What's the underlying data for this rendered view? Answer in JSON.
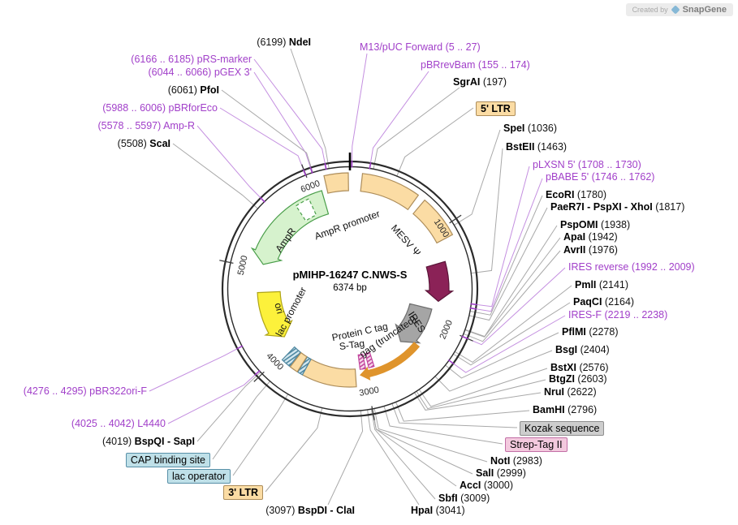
{
  "badge": {
    "created_by": "Created by",
    "brand": "SnapGene"
  },
  "plasmid": {
    "name": "pMIHP-16247 C.NWS-S",
    "size": "6374 bp",
    "length_bp": 6374
  },
  "scale_ticks": [
    1000,
    2000,
    3000,
    4000,
    5000,
    6000
  ],
  "colors": {
    "primer": "#A13FC9",
    "enzyme": "#000000",
    "line_gray": "#A9A9A9",
    "line_purple": "#C48FE0",
    "ring": "#2B2B2B",
    "tan_fill": "#FBDCA4",
    "tan_stroke": "#AD8D5A",
    "green_fill": "#D6F2CD",
    "green_stroke": "#4A9E4A",
    "yellow_fill": "#FCF13B",
    "yellow_stroke": "#AFA416",
    "maroon_fill": "#8B2257",
    "maroon_stroke": "#5A1538",
    "gray_fill": "#A5A5A5",
    "gray_stroke": "#6E6E6E",
    "orange": "#DF942C",
    "pink_fill": "#F6D8EA",
    "pink_stroke": "#C2479E",
    "teal_fill": "#D4E8F0",
    "teal_stroke": "#4E87A0"
  },
  "site_labels": [
    {
      "id": "m13_puc_forward",
      "kind": "primer",
      "name": "M13/pUC Forward",
      "post": "(5 .. 27)",
      "bp": 16
    },
    {
      "id": "pbrrevbam",
      "kind": "primer",
      "name": "pBRrevBam",
      "post": "(155 .. 174)",
      "bp": 165
    },
    {
      "id": "sgrai",
      "kind": "enzyme",
      "name": "SgrAI",
      "post": "(197)",
      "bp": 197
    },
    {
      "id": "five_ltr",
      "kind": "feature",
      "name": "5' LTR",
      "box": "tan",
      "bp": 400
    },
    {
      "id": "spei",
      "kind": "enzyme",
      "name": "SpeI",
      "post": "(1036)",
      "bp": 1036
    },
    {
      "id": "bsteii",
      "kind": "enzyme",
      "name": "BstEII",
      "post": "(1463)",
      "bp": 1463
    },
    {
      "id": "plxsn5",
      "kind": "primer",
      "name": "pLXSN 5'",
      "post": "(1708 .. 1730)",
      "bp": 1719
    },
    {
      "id": "pbabe5",
      "kind": "primer",
      "name": "pBABE 5'",
      "post": "(1746 .. 1762)",
      "bp": 1754
    },
    {
      "id": "ecori",
      "kind": "enzyme",
      "name": "EcoRI",
      "post": "(1780)",
      "bp": 1780
    },
    {
      "id": "paer7i_pspxi_xhoi",
      "kind": "enzyme",
      "name": "PaeR7I - PspXI - XhoI",
      "post": "(1817)",
      "bp": 1817
    },
    {
      "id": "pspomi",
      "kind": "enzyme",
      "name": "PspOMI",
      "post": "(1938)",
      "bp": 1938
    },
    {
      "id": "apai",
      "kind": "enzyme",
      "name": "ApaI",
      "post": "(1942)",
      "bp": 1942
    },
    {
      "id": "avrii",
      "kind": "enzyme",
      "name": "AvrII",
      "post": "(1976)",
      "bp": 1976
    },
    {
      "id": "ires_reverse",
      "kind": "primer",
      "name": "IRES reverse",
      "post": "(1992 .. 2009)",
      "bp": 2000
    },
    {
      "id": "pmli",
      "kind": "enzyme",
      "name": "PmlI",
      "post": "(2141)",
      "bp": 2141
    },
    {
      "id": "paqci",
      "kind": "enzyme",
      "name": "PaqCI",
      "post": "(2164)",
      "bp": 2164
    },
    {
      "id": "ires_f",
      "kind": "primer",
      "name": "IRES-F",
      "post": "(2219 .. 2238)",
      "bp": 2228
    },
    {
      "id": "pflmi",
      "kind": "enzyme",
      "name": "PflMI",
      "post": "(2278)",
      "bp": 2278
    },
    {
      "id": "bsgi",
      "kind": "enzyme",
      "name": "BsgI",
      "post": "(2404)",
      "bp": 2404
    },
    {
      "id": "bstxi",
      "kind": "enzyme",
      "name": "BstXI",
      "post": "(2576)",
      "bp": 2576
    },
    {
      "id": "btgzi",
      "kind": "enzyme",
      "name": "BtgZI",
      "post": "(2603)",
      "bp": 2603
    },
    {
      "id": "nrui",
      "kind": "enzyme",
      "name": "NruI",
      "post": "(2622)",
      "bp": 2622
    },
    {
      "id": "bamhi",
      "kind": "enzyme",
      "name": "BamHI",
      "post": "(2796)",
      "bp": 2796
    },
    {
      "id": "kozak",
      "kind": "feature",
      "name": "Kozak sequence",
      "box": "gray",
      "bp": 2830
    },
    {
      "id": "strep_tag_ii",
      "kind": "feature",
      "name": "Strep-Tag II",
      "box": "pink",
      "bp": 2900
    },
    {
      "id": "noti",
      "kind": "enzyme",
      "name": "NotI",
      "post": "(2983)",
      "bp": 2983
    },
    {
      "id": "sali",
      "kind": "enzyme",
      "name": "SalI",
      "post": "(2999)",
      "bp": 2999
    },
    {
      "id": "acci",
      "kind": "enzyme",
      "name": "AccI",
      "post": "(3000)",
      "bp": 3000
    },
    {
      "id": "sbfi",
      "kind": "enzyme",
      "name": "SbfI",
      "post": "(3009)",
      "bp": 3009
    },
    {
      "id": "hpai",
      "kind": "enzyme",
      "name": "HpaI",
      "post": "(3041)",
      "bp": 3041
    },
    {
      "id": "bspdi_clai",
      "kind": "enzyme",
      "pre": "(3097)",
      "name": "BspDI - ClaI",
      "bp": 3097
    },
    {
      "id": "three_ltr",
      "kind": "feature",
      "name": "3' LTR",
      "box": "tan",
      "bp": 3420
    },
    {
      "id": "lac_operator",
      "kind": "feature",
      "name": "lac operator",
      "box": "teal",
      "bp": 3727
    },
    {
      "id": "cap_binding_site",
      "kind": "feature",
      "name": "CAP binding site",
      "box": "teal",
      "bp": 3910
    },
    {
      "id": "bspqi_sapi",
      "kind": "enzyme",
      "pre": "(4019)",
      "name": "BspQI - SapI",
      "bp": 4019
    },
    {
      "id": "l4440",
      "kind": "primer",
      "pre": "(4025 .. 4042)",
      "name": "L4440",
      "bp": 4033
    },
    {
      "id": "pbr322ori_f",
      "kind": "primer",
      "pre": "(4276 .. 4295)",
      "name": "pBR322ori-F",
      "bp": 4285
    },
    {
      "id": "scai",
      "kind": "enzyme",
      "pre": "(5508)",
      "name": "ScaI",
      "bp": 5508
    },
    {
      "id": "amp_r",
      "kind": "primer",
      "pre": "(5578 .. 5597)",
      "name": "Amp-R",
      "bp": 5587
    },
    {
      "id": "pbrforeco",
      "kind": "primer",
      "pre": "(5988 .. 6006)",
      "name": "pBRforEco",
      "bp": 5997
    },
    {
      "id": "pgex3",
      "kind": "primer",
      "pre": "(6044 .. 6066)",
      "name": "pGEX 3'",
      "bp": 6055
    },
    {
      "id": "pfoi",
      "kind": "enzyme",
      "pre": "(6061)",
      "name": "PfoI",
      "bp": 6061
    },
    {
      "id": "prs_marker",
      "kind": "primer",
      "pre": "(6166 .. 6185)",
      "name": "pRS-marker",
      "bp": 6175
    },
    {
      "id": "ndei",
      "kind": "enzyme",
      "pre": "(6199)",
      "name": "NdeI",
      "bp": 6199
    }
  ],
  "features": [
    {
      "id": "ltr5_arc",
      "name": "5' LTR",
      "shape": "arc",
      "color": "tan",
      "bp": [
        110,
        640
      ]
    },
    {
      "id": "psi_arc",
      "name": "MESV Ψ",
      "shape": "arc",
      "color": "tan",
      "bp": [
        710,
        1100
      ],
      "label": "MESV Ψ"
    },
    {
      "id": "env_arrow",
      "name": "",
      "shape": "arrow",
      "color": "maroon",
      "bp": [
        1310,
        1735
      ],
      "dir": 1
    },
    {
      "id": "ires_arrow",
      "name": "IRES",
      "shape": "arrow",
      "color": "gray",
      "bp": [
        1840,
        2410
      ],
      "dir": 1,
      "label": "IRES"
    },
    {
      "id": "gag_arrow",
      "name": "gag (truncated)",
      "shape": "thin_arrow",
      "color": "orange",
      "bp": [
        2300,
        3063
      ],
      "dir": 1,
      "label": "gag (truncated)"
    },
    {
      "id": "protein_c_tag",
      "name": "Protein C tag",
      "shape": "hatch",
      "color": "pink",
      "bp": [
        2880,
        2950
      ],
      "label": "Protein C tag"
    },
    {
      "id": "s_tag",
      "name": "S-Tag",
      "shape": "hatch",
      "color": "pink",
      "bp": [
        2990,
        3060
      ],
      "label": "S-Tag"
    },
    {
      "id": "ltr3_arc",
      "name": "3' LTR",
      "shape": "arc",
      "color": "tan",
      "bp": [
        3120,
        3700
      ]
    },
    {
      "id": "lac_operator_mark",
      "name": "lac operator",
      "shape": "hatch",
      "color": "teal",
      "bp": [
        3700,
        3755
      ]
    },
    {
      "id": "lac_promoter_arc",
      "name": "lac promoter",
      "shape": "arc",
      "color": "tan",
      "bp": [
        3760,
        3850
      ],
      "label": "lac promoter"
    },
    {
      "id": "cap_mark",
      "name": "CAP binding site",
      "shape": "hatch",
      "color": "teal",
      "bp": [
        3860,
        3960
      ]
    },
    {
      "id": "ori_arrow",
      "name": "ori",
      "shape": "arrow",
      "color": "yellow",
      "bp": [
        4140,
        4740
      ],
      "dir": -1,
      "label": "ori"
    },
    {
      "id": "ampr_arrow",
      "name": "AmpR",
      "shape": "arrow",
      "color": "green",
      "bp": [
        5060,
        6090
      ],
      "dir": -1,
      "label": "AmpR"
    },
    {
      "id": "ampr_gap",
      "name": "",
      "shape": "dashed",
      "color": "green",
      "bp": [
        5790,
        5940
      ]
    },
    {
      "id": "ampr_promoter_arc",
      "name": "AmpR promoter",
      "shape": "arc",
      "color": "tan",
      "bp": [
        6145,
        6360
      ],
      "label": "AmpR promoter"
    }
  ]
}
